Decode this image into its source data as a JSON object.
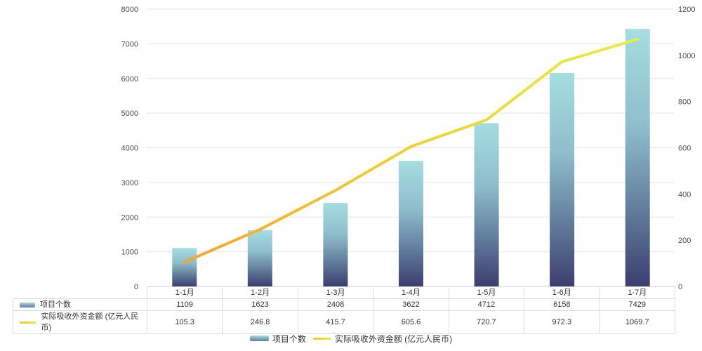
{
  "chart_data": {
    "type": "combo-bar-line",
    "categories": [
      "1-1月",
      "1-2月",
      "1-3月",
      "1-4月",
      "1-5月",
      "1-6月",
      "1-7月"
    ],
    "series": [
      {
        "name": "项目个数",
        "type": "bar",
        "yaxis": "left",
        "values": [
          1109,
          1623,
          2408,
          3622,
          4712,
          6158,
          7429
        ]
      },
      {
        "name": "实际吸收外资金额 (亿元人民币)",
        "type": "line",
        "yaxis": "right",
        "values": [
          105.3,
          246.8,
          415.7,
          605.6,
          720.7,
          972.3,
          1069.7
        ]
      }
    ],
    "left_axis": {
      "min": 0,
      "max": 8000,
      "step": 1000,
      "ylim": [
        0,
        8000
      ]
    },
    "right_axis": {
      "min": 0,
      "max": 1200,
      "step": 200,
      "ylim": [
        0,
        1200
      ]
    },
    "grid": true,
    "legend_position": "bottom",
    "data_table_shown": true,
    "title": "",
    "xlabel": "",
    "ylabel": ""
  },
  "colors": {
    "bar_gradient_top": "#A5DDE0",
    "bar_gradient_mid1": "#8FBDCC",
    "bar_gradient_mid2": "#64829F",
    "bar_gradient_bottom": "#3C3E6F",
    "line_gradient_start": "#F6A42B",
    "line_gradient_mid": "#F2CE33",
    "line_gradient_end": "#E9EE43",
    "gridline": "#E4E4E4",
    "axis_text": "#4D4D4D",
    "table_border": "#DCDCDC",
    "table_text": "#333333",
    "background": "#FFFFFF"
  }
}
